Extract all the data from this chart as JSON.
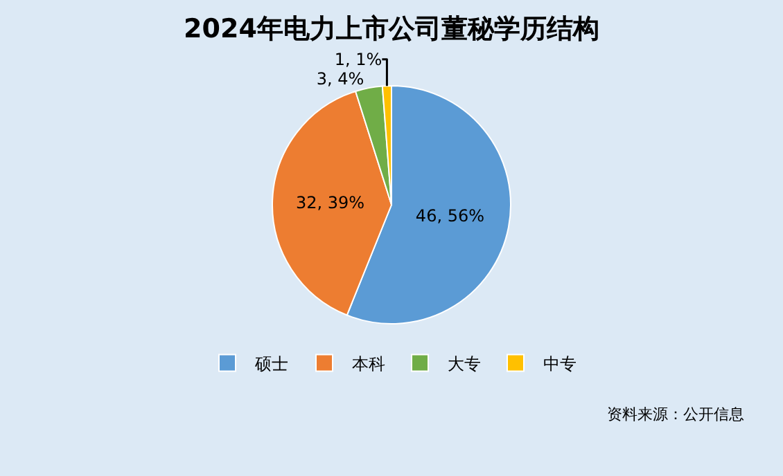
{
  "chart_data": {
    "type": "pie",
    "title": "2024年电力上市公司董秘学历结构",
    "categories": [
      "硕士",
      "本科",
      "大专",
      "中专"
    ],
    "values": [
      46,
      32,
      3,
      1
    ],
    "value_labels": [
      "46, 56%",
      "32, 39%",
      "3, 4%",
      "1, 1%"
    ],
    "colors": [
      "#5b9bd5",
      "#ed7d31",
      "#70ad47",
      "#ffc000"
    ],
    "legend": "bottom",
    "annotations": [
      "资料来源：公开信息"
    ]
  }
}
